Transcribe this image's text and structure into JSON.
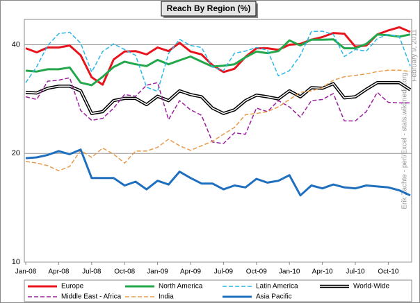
{
  "chart_data": {
    "type": "line",
    "title": "Reach By Region (%)",
    "annotations": [
      "Erik Zachte - perl/Excel - stats.wikimedia.org",
      "February 9, 2011"
    ],
    "categories": [
      "Jan-08",
      null,
      null,
      "Apr-08",
      null,
      null,
      "Jul-08",
      null,
      null,
      "Oct-08",
      null,
      null,
      "Jan-09",
      null,
      null,
      "Apr-09",
      null,
      null,
      "Jul-09",
      null,
      null,
      "Oct-09",
      null,
      null,
      "Jan-10",
      null,
      null,
      "Apr-10",
      null,
      null,
      "Jul-10",
      null,
      null,
      "Oct-10",
      null,
      null
    ],
    "ylim": [
      10,
      47
    ],
    "yticks": [
      10,
      20,
      40
    ],
    "log_scale": true,
    "grid": true,
    "legend": "bottom",
    "series": [
      {
        "name": "Europe",
        "color": "#e8141c",
        "line_style": "solid",
        "width": 3,
        "values": [
          39.1,
          38.1,
          39.3,
          39.3,
          39.8,
          37.4,
          32.5,
          31.0,
          36.4,
          38.3,
          38.4,
          37.6,
          39.3,
          38.4,
          40.5,
          38.3,
          37.6,
          35.1,
          33.6,
          34.3,
          37.0,
          39.1,
          39.1,
          38.7,
          40.0,
          40.2,
          41.3,
          42.0,
          43.1,
          42.9,
          39.5,
          39.8,
          42.7,
          43.8,
          44.7,
          43.4
        ]
      },
      {
        "name": "North America",
        "color": "#22a84a",
        "line_style": "solid",
        "width": 3,
        "values": [
          33.9,
          33.7,
          34.2,
          34.2,
          34.6,
          31.4,
          30.9,
          32.6,
          34.7,
          35.9,
          35.3,
          34.9,
          36.3,
          35.3,
          36.2,
          37.1,
          35.9,
          34.8,
          35.0,
          35.3,
          36.9,
          38.3,
          37.9,
          38.4,
          41.1,
          39.8,
          41.3,
          41.3,
          41.4,
          39.1,
          39.1,
          40.2,
          42.7,
          42.5,
          42.1,
          42.7
        ]
      },
      {
        "name": "Latin America",
        "color": "#2bb6e8",
        "line_style": "dashed",
        "width": 1.5,
        "values": [
          31.4,
          34.8,
          39.8,
          42.9,
          43.3,
          40.4,
          33.6,
          38.3,
          40.2,
          38.8,
          37.4,
          30.5,
          29.7,
          37.8,
          41.4,
          39.8,
          39.3,
          34.7,
          33.9,
          37.9,
          38.4,
          39.3,
          38.6,
          32.8,
          33.9,
          37.4,
          43.5,
          43.6,
          42.7,
          37.1,
          38.8,
          38.4,
          41.6,
          42.7,
          42.1,
          34.9
        ]
      },
      {
        "name": "World-Wide",
        "color": "#000000",
        "line_style": "double",
        "width": 4.5,
        "values": [
          29.5,
          29.4,
          30.3,
          30.7,
          30.7,
          29.8,
          25.8,
          26.1,
          28.0,
          28.4,
          28.4,
          27.3,
          28.8,
          28.0,
          29.8,
          29.1,
          28.7,
          26.7,
          25.8,
          26.4,
          28.0,
          29.0,
          28.7,
          28.3,
          29.8,
          28.7,
          30.4,
          30.3,
          31.2,
          28.5,
          28.7,
          30.1,
          31.4,
          31.4,
          31.4,
          30.0
        ]
      },
      {
        "name": "Middle East - Africa",
        "color": "#9b1f9e",
        "line_style": "dashed",
        "width": 1.5,
        "values": [
          28.7,
          28.2,
          31.7,
          31.9,
          32.4,
          26.3,
          24.7,
          25.0,
          26.7,
          29.1,
          28.8,
          30.9,
          31.4,
          24.8,
          28.0,
          26.4,
          25.5,
          21.5,
          21.3,
          22.8,
          22.6,
          26.7,
          26.1,
          28.0,
          26.9,
          25.2,
          28.0,
          28.2,
          29.3,
          24.6,
          24.6,
          26.1,
          29.5,
          27.7,
          27.6,
          27.6
        ]
      },
      {
        "name": "India",
        "color": "#e89a4a",
        "line_style": "dashed",
        "width": 1.5,
        "values": [
          19.0,
          18.8,
          18.5,
          17.9,
          18.4,
          20.4,
          19.5,
          20.7,
          19.9,
          18.8,
          20.3,
          20.3,
          20.8,
          21.9,
          21.0,
          20.4,
          21.0,
          21.6,
          22.6,
          23.6,
          25.6,
          25.8,
          26.1,
          26.9,
          28.2,
          29.5,
          29.8,
          30.4,
          31.9,
          32.6,
          32.9,
          33.2,
          33.7,
          34.0,
          34.0,
          33.7
        ]
      },
      {
        "name": "Asia Pacific",
        "color": "#1f6fbf",
        "line_style": "solid",
        "width": 3,
        "values": [
          19.4,
          19.5,
          19.8,
          20.3,
          19.9,
          20.5,
          17.1,
          17.1,
          17.1,
          16.3,
          16.7,
          15.9,
          16.8,
          16.4,
          17.8,
          17.1,
          16.5,
          16.5,
          15.9,
          16.3,
          16.1,
          17.0,
          16.6,
          16.8,
          17.4,
          15.3,
          16.3,
          16.0,
          16.4,
          16.1,
          16.0,
          16.3,
          16.2,
          16.1,
          15.8,
          15.3
        ]
      }
    ]
  }
}
